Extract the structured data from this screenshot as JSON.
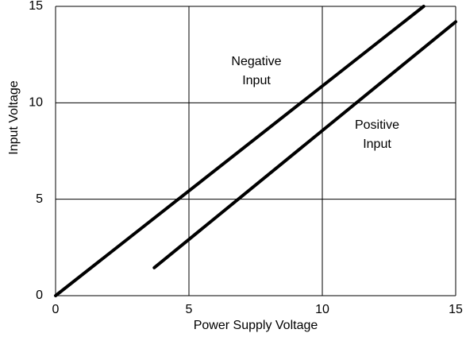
{
  "chart_data": {
    "type": "line",
    "xlabel": "Power Supply Voltage",
    "ylabel": "Input Voltage",
    "xlim": [
      0,
      15
    ],
    "ylim": [
      0,
      15
    ],
    "xticks": [
      0,
      5,
      10,
      15
    ],
    "yticks": [
      0,
      5,
      10,
      15
    ],
    "grid": true,
    "series": [
      {
        "color": "#000000",
        "x": [
          0,
          13.8
        ],
        "values": [
          0,
          15
        ]
      },
      {
        "color": "#000000",
        "x": [
          3.7,
          15
        ],
        "values": [
          1.45,
          14.2
        ]
      }
    ],
    "annotations": [
      [
        "Negative",
        "Input"
      ],
      [
        "Positive",
        "Input"
      ]
    ]
  }
}
